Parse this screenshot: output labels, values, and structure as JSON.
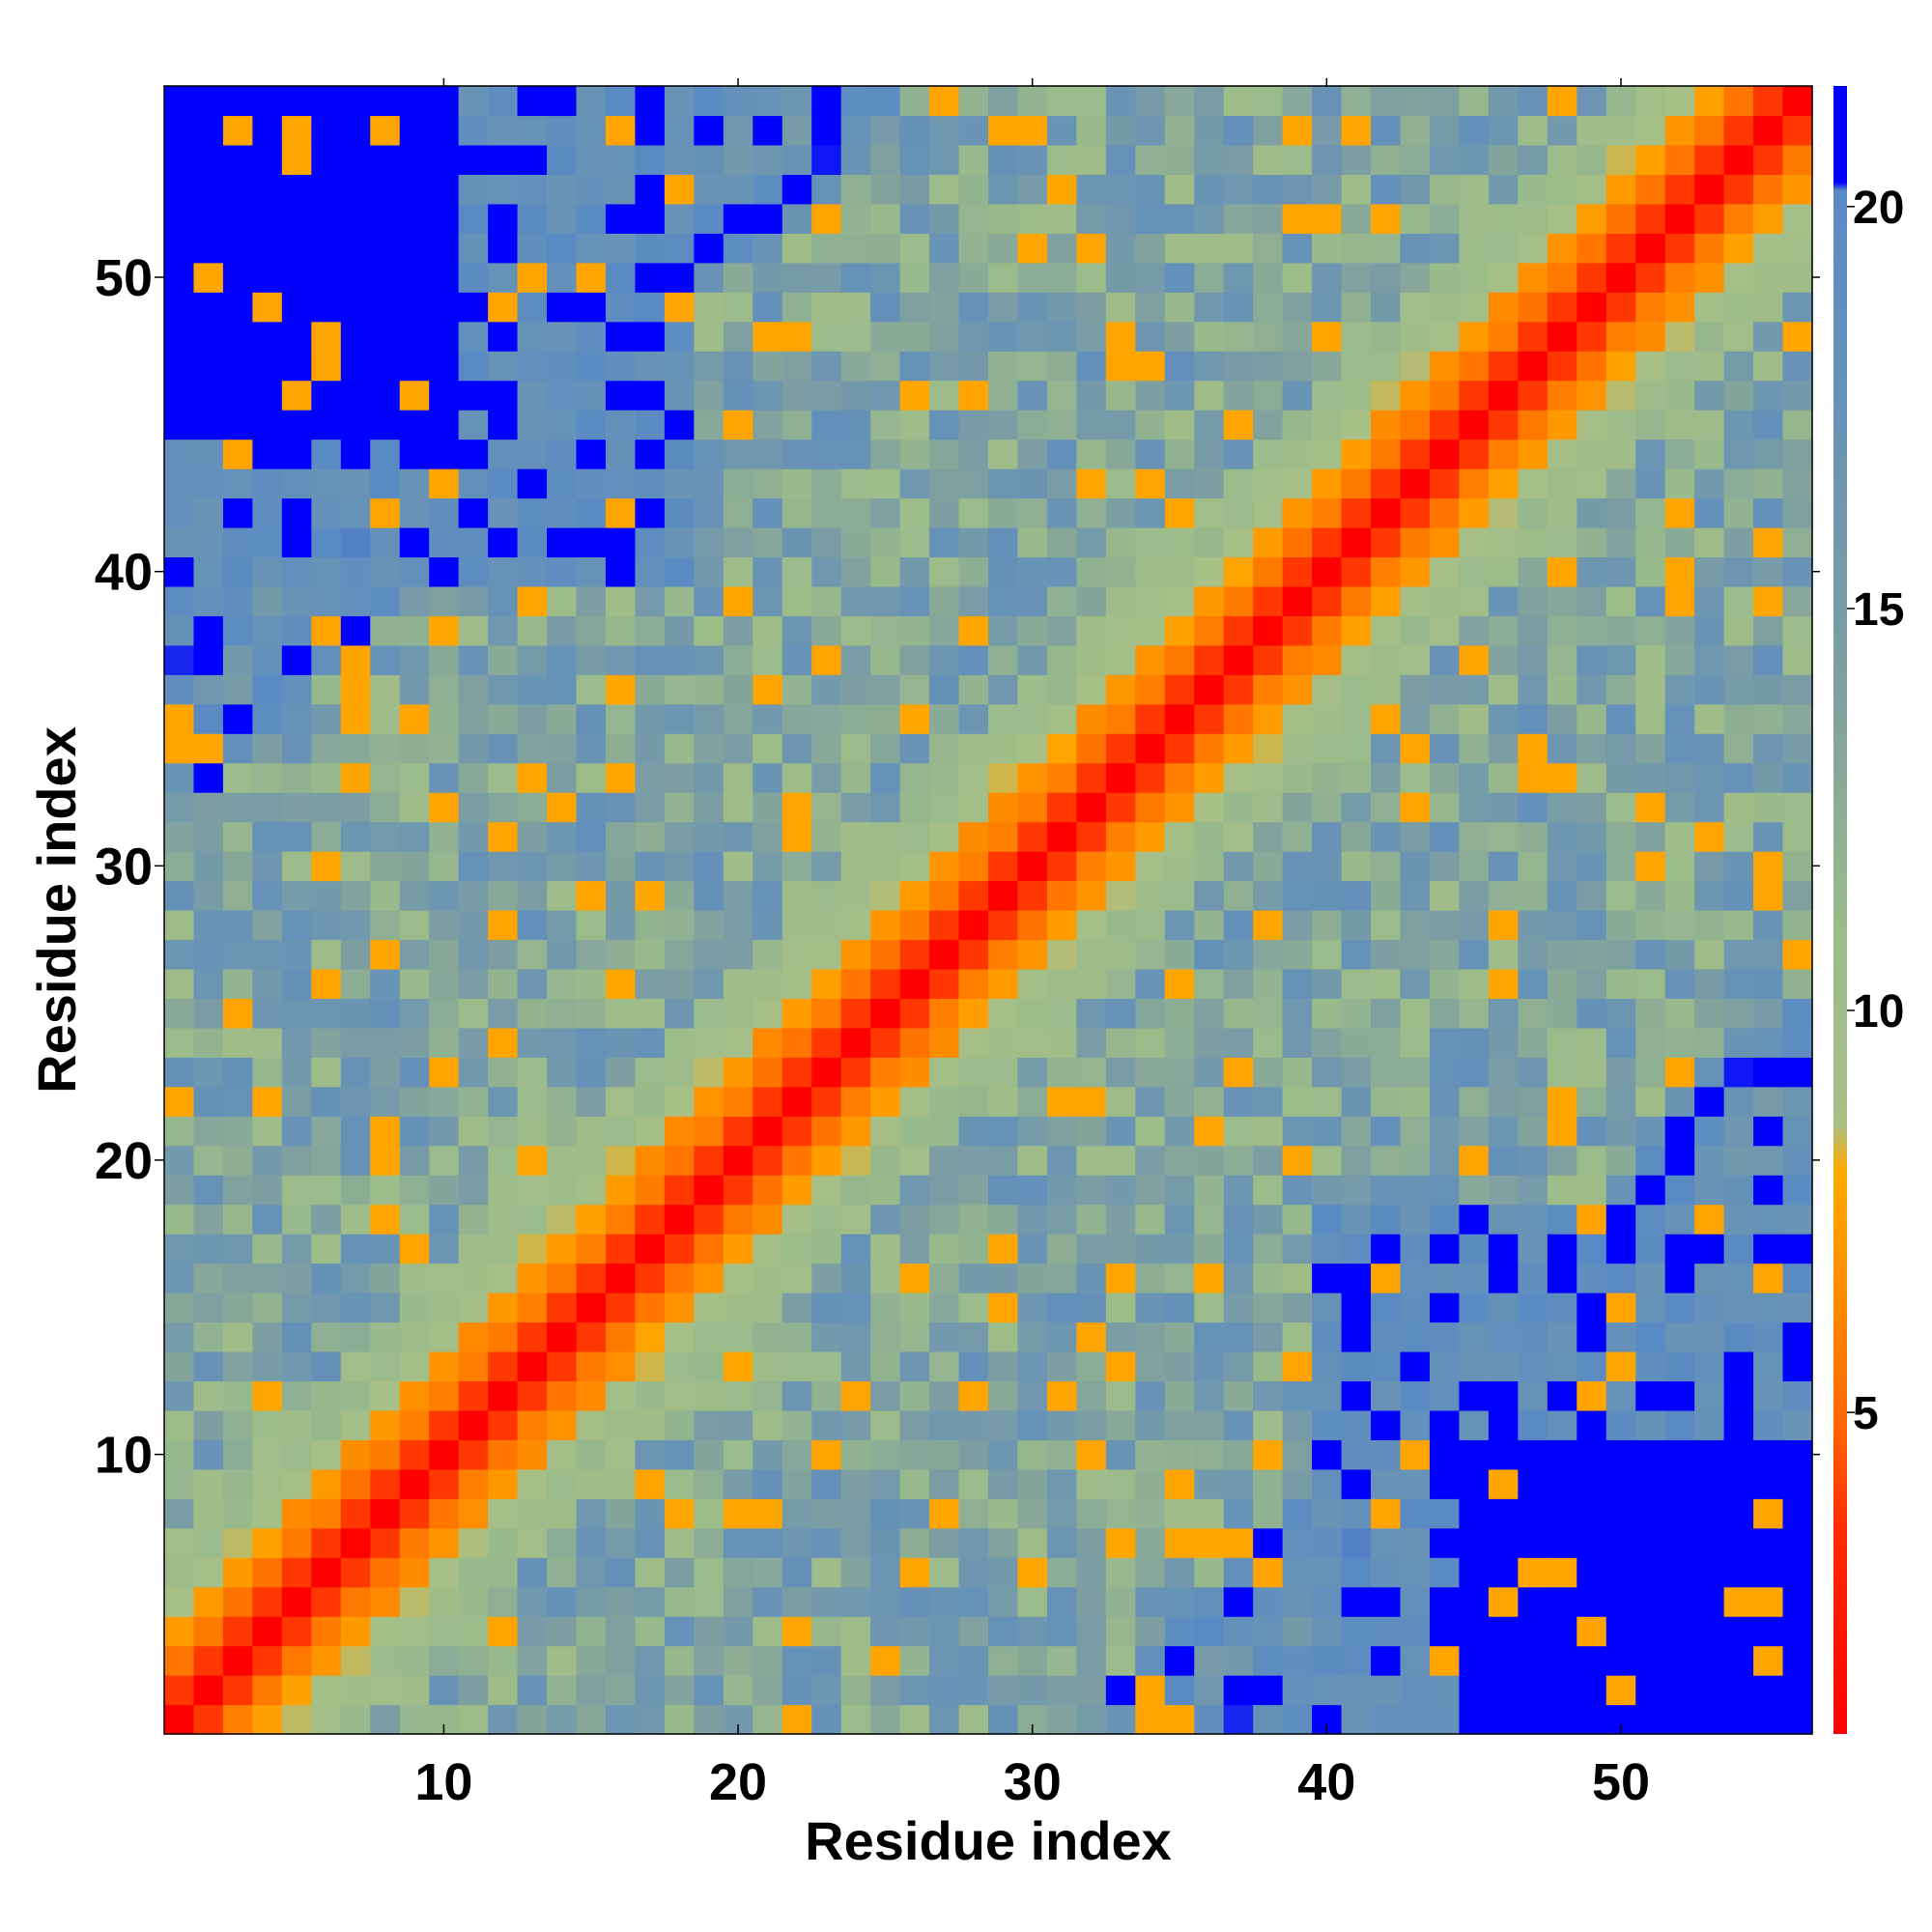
{
  "chart_data": {
    "type": "heatmap",
    "xlabel": "Residue index",
    "ylabel": "Residue index",
    "n": 56,
    "xlim": [
      0.5,
      56.5
    ],
    "ylim": [
      0.5,
      56.5
    ],
    "x_ticks": [
      10,
      20,
      30,
      40,
      50
    ],
    "y_ticks": [
      10,
      20,
      30,
      40,
      50
    ],
    "colorbar": {
      "range": [
        1,
        21.5
      ],
      "ticks": [
        5,
        10,
        15,
        20
      ],
      "stops": [
        {
          "value": 1,
          "color": "#ff0000"
        },
        {
          "value": 3.5,
          "color": "#ff2a00"
        },
        {
          "value": 5,
          "color": "#ff6a00"
        },
        {
          "value": 6.5,
          "color": "#ff8c00"
        },
        {
          "value": 8,
          "color": "#ffaa00"
        },
        {
          "value": 8.6,
          "color": "#a8bf86"
        },
        {
          "value": 11,
          "color": "#9abb8a"
        },
        {
          "value": 14,
          "color": "#7fa0a0"
        },
        {
          "value": 17,
          "color": "#6a94b4"
        },
        {
          "value": 20.2,
          "color": "#5a8ac4"
        },
        {
          "value": 20.3,
          "color": "#0000ff"
        },
        {
          "value": 21.5,
          "color": "#0000ff"
        }
      ]
    },
    "colors": {
      "near": "#ff0000",
      "mid": "#ffa500",
      "far": "#0000ff"
    }
  }
}
